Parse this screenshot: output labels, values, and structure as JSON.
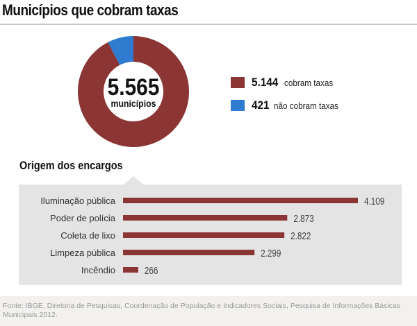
{
  "title": "Municípios que cobram taxas",
  "donut": {
    "center_value": "5.565",
    "center_label": "municípios",
    "colors": {
      "cobram": "#8b3534",
      "nao_cobram": "#2e7bd0"
    }
  },
  "legend": [
    {
      "value": "5.144",
      "label": "cobram taxas",
      "color": "#8b3534"
    },
    {
      "value": "421",
      "label": "não cobram taxas",
      "color": "#2e7bd0"
    }
  ],
  "subtitle": "Origem dos encargos",
  "footer": "Fonte: IBGE, Diretoria de Pesquisas, Coordenação de População e Indicadores Sociais, Pesquisa de Informações Básicas Municipais 2012.",
  "chart_data": [
    {
      "type": "pie",
      "title": "Municípios que cobram taxas",
      "total": 5565,
      "total_label": "5.565 municípios",
      "categories": [
        "cobram taxas",
        "não cobram taxas"
      ],
      "values": [
        5144,
        421
      ],
      "value_labels": [
        "5.144",
        "421"
      ],
      "colors": [
        "#8b3534",
        "#2e7bd0"
      ],
      "donut": true,
      "legend": "right"
    },
    {
      "type": "bar",
      "orientation": "horizontal",
      "title": "Origem dos encargos",
      "categories": [
        "Iluminação pública",
        "Poder de polícia",
        "Coleta de lixo",
        "Limpeza pública",
        "Incêndio"
      ],
      "values": [
        4109,
        2873,
        2822,
        2299,
        266
      ],
      "value_labels": [
        "4.109",
        "2.873",
        "2.822",
        "2.299",
        "266"
      ],
      "color": "#8b3534",
      "xlim": [
        0,
        4109
      ],
      "grid": false,
      "xlabel": "",
      "ylabel": ""
    }
  ]
}
